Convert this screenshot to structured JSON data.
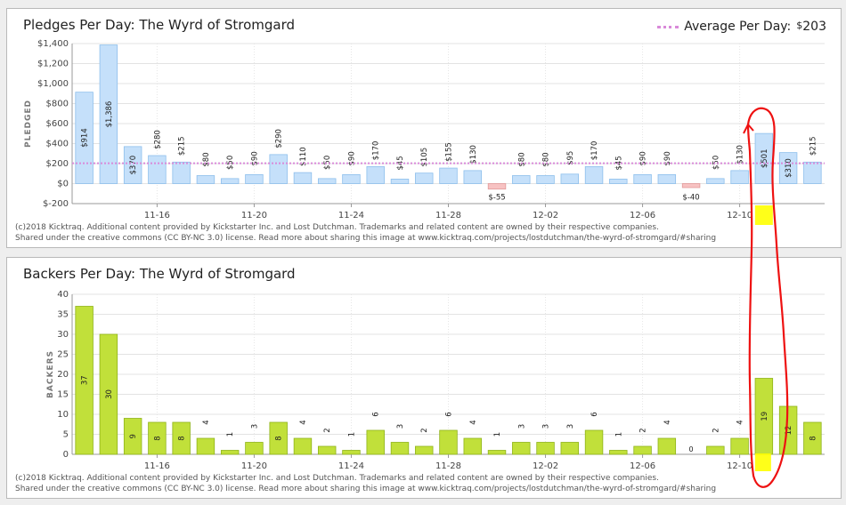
{
  "credit": {
    "line1": "(c)2018 Kicktraq. Additional content provided by Kickstarter Inc. and Lost Dutchman. Trademarks and related content are owned by their respective companies.",
    "line2": "Shared under the creative commons (CC BY-NC 3.0) license. Read more about sharing this image at www.kicktraq.com/projects/lostdutchman/the-wyrd-of-stromgard/#sharing"
  },
  "legend": {
    "label": "Average Per Day:",
    "currency": "$",
    "amount": "203"
  },
  "colors": {
    "pledge_positive": "#c5e0fa",
    "pledge_positive_border": "#8dbfec",
    "pledge_negative": "#f7c2c2",
    "pledge_negative_border": "#e39a9a",
    "backers": "#c1e03a",
    "backers_border": "#8fb31a",
    "average_line": "#d98ad9",
    "annotation": "#ee1111",
    "highlight": "#ffff00"
  },
  "chart_data": [
    {
      "type": "bar",
      "title": "Pledges Per Day: The Wyrd of Stromgard",
      "ylabel": "PLEDGED",
      "ylim": [
        -200,
        1400
      ],
      "yticks": [
        -200,
        0,
        200,
        400,
        600,
        800,
        1000,
        1200,
        1400
      ],
      "ytick_labels": [
        "$-200",
        "$0",
        "$200",
        "$400",
        "$600",
        "$800",
        "$1,000",
        "$1,200",
        "$1,400"
      ],
      "xtick_labels": [
        {
          "index": 3,
          "label": "11-16"
        },
        {
          "index": 7,
          "label": "11-20"
        },
        {
          "index": 11,
          "label": "11-24"
        },
        {
          "index": 15,
          "label": "11-28"
        },
        {
          "index": 19,
          "label": "12-02"
        },
        {
          "index": 23,
          "label": "12-06"
        },
        {
          "index": 27,
          "label": "12-10"
        }
      ],
      "average": 203,
      "values": [
        914,
        1386,
        370,
        280,
        215,
        80,
        50,
        90,
        290,
        110,
        50,
        90,
        170,
        45,
        105,
        155,
        130,
        -55,
        80,
        80,
        95,
        170,
        45,
        90,
        90,
        -40,
        50,
        130,
        501,
        310,
        215
      ],
      "labels": [
        "$914",
        "$1,386",
        "$370",
        "$280",
        "$215",
        "$80",
        "$50",
        "$90",
        "$290",
        "$110",
        "$50",
        "$90",
        "$170",
        "$45",
        "$105",
        "$155",
        "$130",
        "$-55",
        "$80",
        "$80",
        "$95",
        "$170",
        "$45",
        "$90",
        "$90",
        "$-40",
        "$50",
        "$130",
        "$501",
        "$310",
        "$215"
      ]
    },
    {
      "type": "bar",
      "title": "Backers Per Day: The Wyrd of Stromgard",
      "ylabel": "BACKERS",
      "ylim": [
        0,
        40
      ],
      "yticks": [
        0,
        5,
        10,
        15,
        20,
        25,
        30,
        35,
        40
      ],
      "ytick_labels": [
        "0",
        "5",
        "10",
        "15",
        "20",
        "25",
        "30",
        "35",
        "40"
      ],
      "xtick_labels": [
        {
          "index": 3,
          "label": "11-16"
        },
        {
          "index": 7,
          "label": "11-20"
        },
        {
          "index": 11,
          "label": "11-24"
        },
        {
          "index": 15,
          "label": "11-28"
        },
        {
          "index": 19,
          "label": "12-02"
        },
        {
          "index": 23,
          "label": "12-06"
        },
        {
          "index": 27,
          "label": "12-10"
        }
      ],
      "values": [
        37,
        30,
        9,
        8,
        8,
        4,
        1,
        3,
        8,
        4,
        2,
        1,
        6,
        3,
        2,
        6,
        4,
        1,
        3,
        3,
        3,
        6,
        1,
        2,
        4,
        0,
        2,
        4,
        19,
        12,
        8
      ],
      "labels": [
        "37",
        "30",
        "9",
        "8",
        "8",
        "4",
        "1",
        "3",
        "8",
        "4",
        "2",
        "1",
        "6",
        "3",
        "2",
        "6",
        "4",
        "1",
        "3",
        "3",
        "3",
        "6",
        "1",
        "2",
        "4",
        "0",
        "2",
        "4",
        "19",
        "12",
        "8"
      ]
    }
  ]
}
